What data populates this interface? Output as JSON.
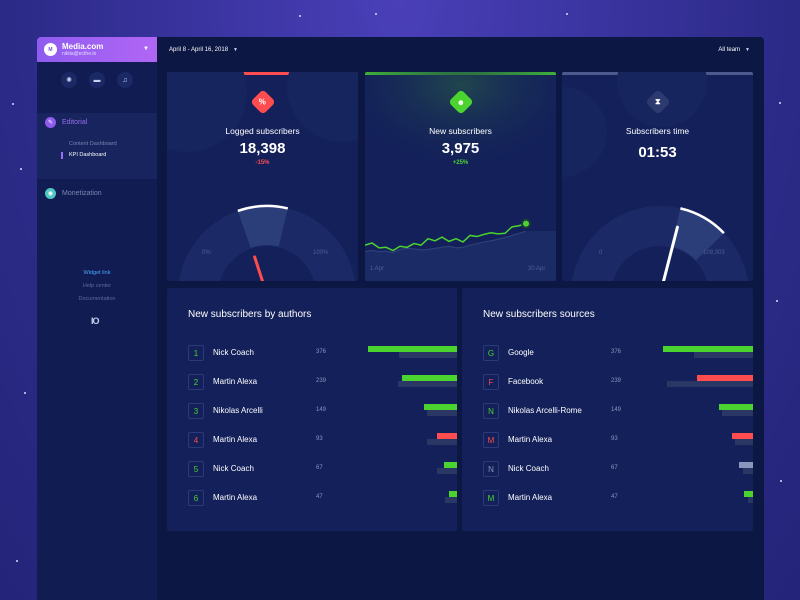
{
  "account": {
    "initial": "M",
    "name": "Media.com",
    "email": "nikita@ecthe.io"
  },
  "sidebar": {
    "nav": [
      {
        "label": "Editorial",
        "icon": "editorial-icon",
        "color": "#8f5cf0"
      },
      {
        "label": "Monetization",
        "icon": "monetization-icon",
        "color": "#4fc7c3"
      }
    ],
    "editorial_items": [
      {
        "label": "Content Dashboard"
      },
      {
        "label": "KPI Dashboard"
      }
    ],
    "links": [
      {
        "label": "Widget link"
      },
      {
        "label": "Help center"
      },
      {
        "label": "Documentation"
      }
    ],
    "logo": "IO"
  },
  "header": {
    "date_range": "April 8 - April 16, 2018",
    "team": "All team"
  },
  "kpis": {
    "logged": {
      "label": "Logged subscribers",
      "value": "18,398",
      "change": "-15%",
      "icon_glyph": "%",
      "gauge_fraction": 0.2,
      "min": "0%",
      "max": "100%",
      "color": "#ff4d4f"
    },
    "new": {
      "label": "New subscribers",
      "value": "3,975",
      "change": "+25%",
      "icon_glyph": "☻",
      "x_start": "1 Apr",
      "x_end": "30 Apr",
      "color": "#4bd32f",
      "series": [
        52,
        56,
        47,
        48,
        42,
        50,
        48,
        55,
        52,
        64,
        60,
        67,
        59,
        64,
        58,
        70,
        68,
        72,
        75,
        73,
        74,
        86,
        88,
        92
      ],
      "secondary": [
        40,
        42,
        40,
        41,
        38,
        44,
        46,
        45,
        43,
        44,
        46,
        48,
        50,
        47,
        48,
        52,
        55,
        58,
        60,
        63,
        66,
        70,
        74,
        78
      ]
    },
    "time": {
      "label": "Subscribers time",
      "value": "01:53",
      "icon_glyph": "⧗",
      "gauge_fraction": 0.58,
      "min": "0",
      "max": "109,303",
      "color": "#4c5a8e"
    }
  },
  "authors": {
    "title": "New subscribers by authors",
    "rows": [
      {
        "rank": "1",
        "name": "Nick Coach",
        "value": "376",
        "num": 376,
        "prev": 250,
        "color": "#4bd32f"
      },
      {
        "rank": "2",
        "name": "Martin Alexa",
        "value": "239",
        "num": 239,
        "prev": 255,
        "color": "#4bd32f"
      },
      {
        "rank": "3",
        "name": "Nikolas Arcelli",
        "value": "149",
        "num": 149,
        "prev": 135,
        "color": "#4bd32f"
      },
      {
        "rank": "4",
        "name": "Martin Alexa",
        "value": "93",
        "num": 93,
        "prev": 135,
        "color": "#ff4d4f"
      },
      {
        "rank": "5",
        "name": "Nick Coach",
        "value": "67",
        "num": 67,
        "prev": 95,
        "color": "#4bd32f"
      },
      {
        "rank": "6",
        "name": "Martin Alexa",
        "value": "47",
        "num": 47,
        "prev": 60,
        "color": "#4bd32f"
      }
    ]
  },
  "sources": {
    "title": "New subscribers sources",
    "rows": [
      {
        "rank": "G",
        "name": "Google",
        "value": "376",
        "num": 376,
        "prev": 250,
        "color": "#4bd32f"
      },
      {
        "rank": "F",
        "name": "Facebook",
        "value": "239",
        "num": 239,
        "prev": 360,
        "color": "#ff4d4f"
      },
      {
        "rank": "N",
        "name": "Nikolas Arcelli-Rome",
        "value": "149",
        "num": 149,
        "prev": 135,
        "color": "#4bd32f"
      },
      {
        "rank": "M",
        "name": "Martin Alexa",
        "value": "93",
        "num": 93,
        "prev": 80,
        "color": "#ff4d4f"
      },
      {
        "rank": "N",
        "name": "Nick Coach",
        "value": "67",
        "num": 67,
        "prev": 48,
        "color": "#8a95bd"
      },
      {
        "rank": "M",
        "name": "Martin Alexa",
        "value": "47",
        "num": 47,
        "prev": 30,
        "color": "#4bd32f"
      }
    ]
  }
}
